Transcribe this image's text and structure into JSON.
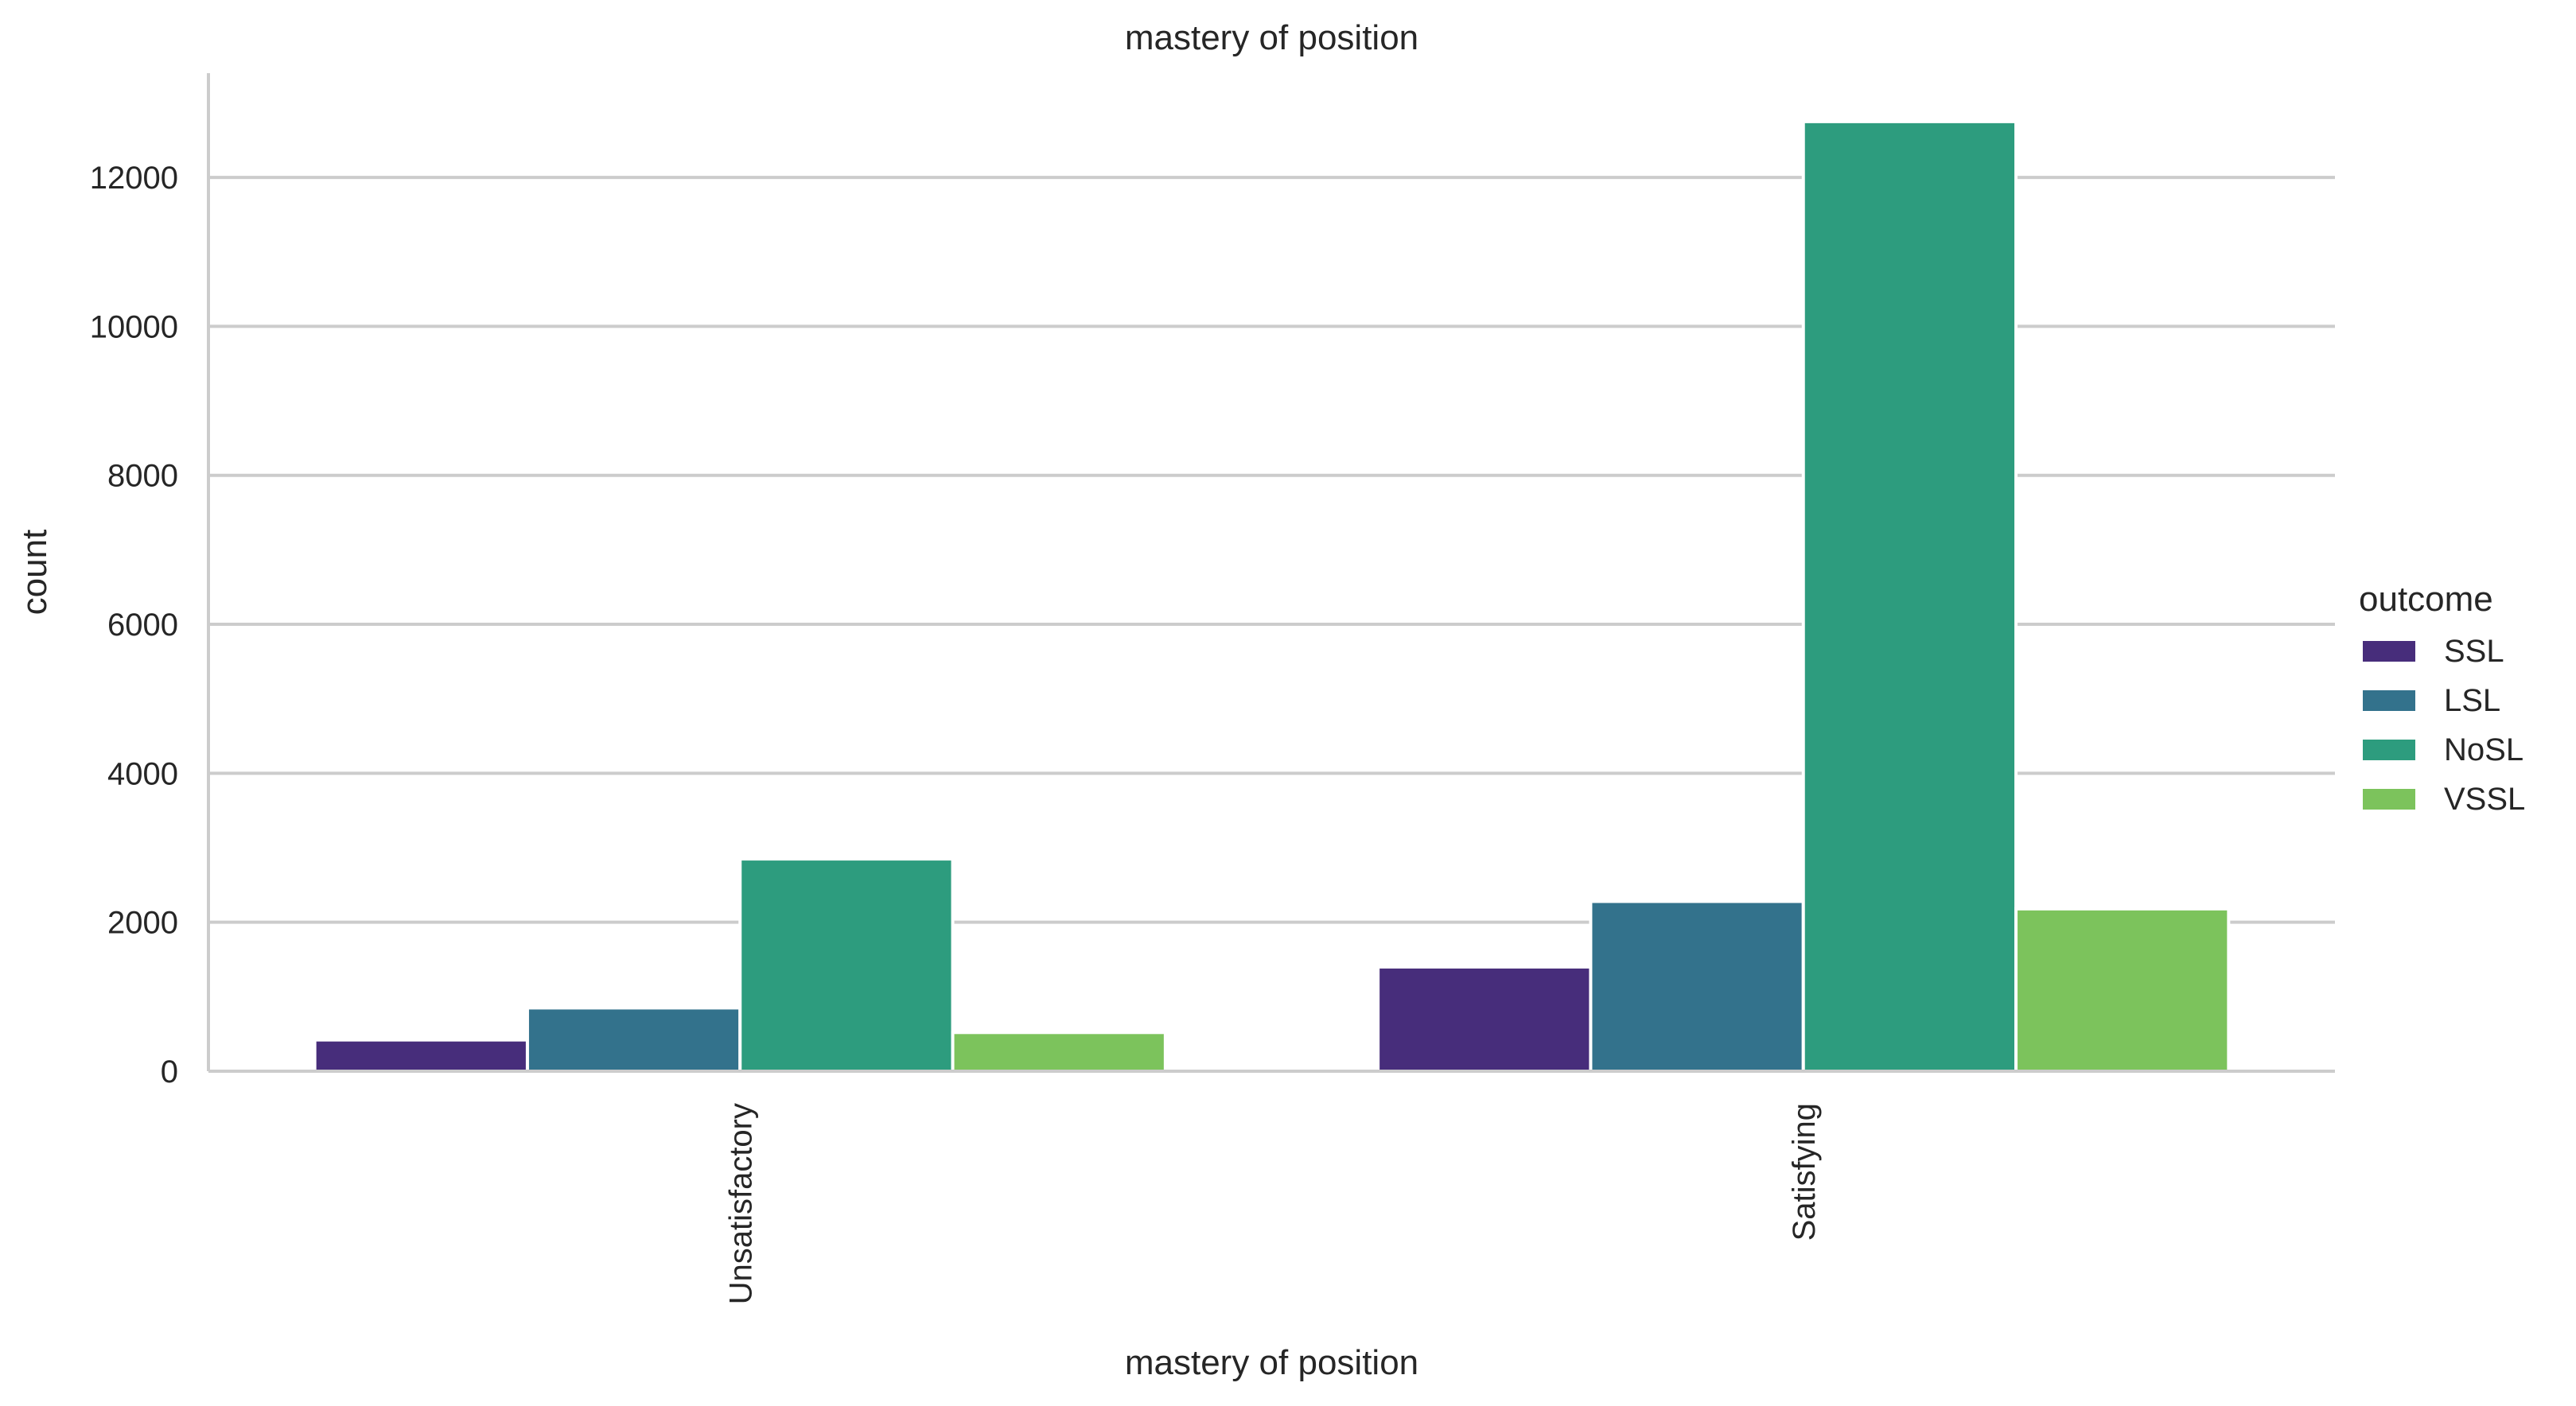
{
  "chart_data": {
    "type": "bar",
    "title": "mastery of position",
    "xlabel": "mastery of position",
    "ylabel": "count",
    "categories": [
      "Unsatisfactory",
      "Satisfying"
    ],
    "series": [
      {
        "name": "SSL",
        "values": [
          420,
          1400
        ],
        "color": "#472d7b"
      },
      {
        "name": "LSL",
        "values": [
          850,
          2280
        ],
        "color": "#33728c"
      },
      {
        "name": "NoSL",
        "values": [
          2850,
          12750
        ],
        "color": "#2d9c7e"
      },
      {
        "name": "VSSL",
        "values": [
          520,
          2180
        ],
        "color": "#7cc35c"
      }
    ],
    "yticks": [
      0,
      2000,
      4000,
      6000,
      8000,
      10000,
      12000
    ],
    "ylim": [
      0,
      13400
    ],
    "grid": true,
    "legend": {
      "title": "outcome",
      "placement": "right"
    },
    "xtick_rotation": "vertical"
  }
}
